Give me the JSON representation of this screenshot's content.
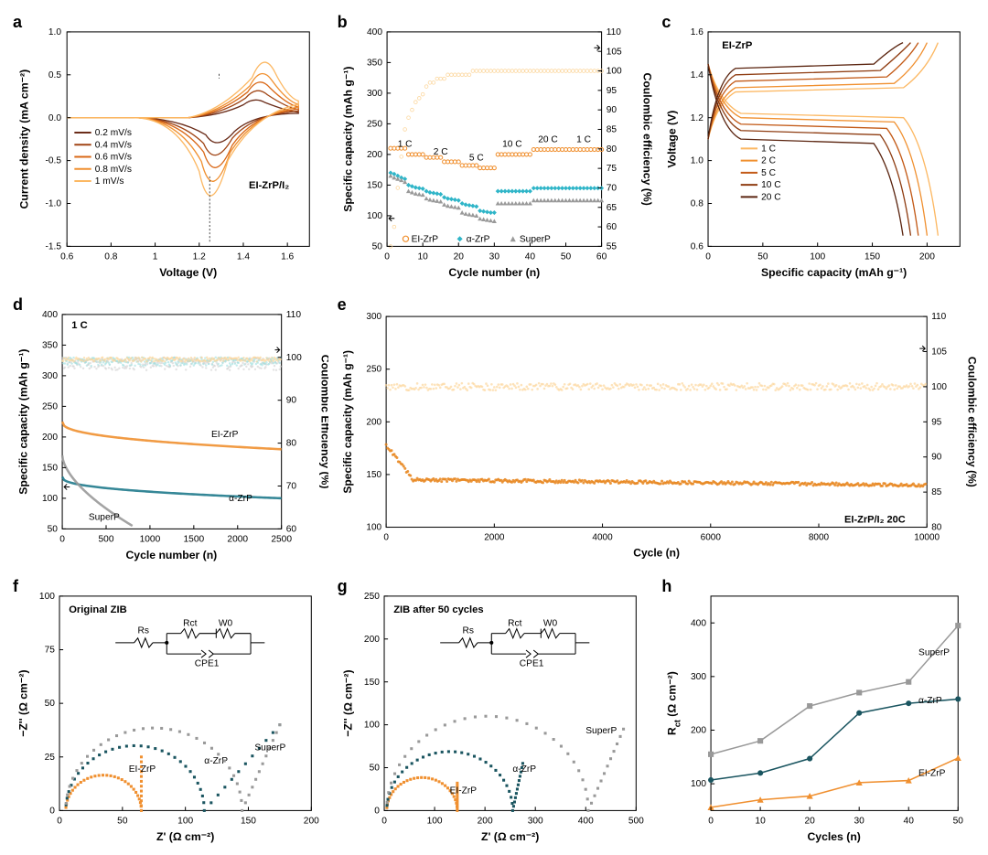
{
  "panels": {
    "a": {
      "label": "a",
      "title": "EI-ZrP/I₂",
      "xlabel": "Voltage (V)",
      "ylabel": "Current density (mA cm⁻²)",
      "xlim": [
        0.6,
        1.7
      ],
      "ylim": [
        -1.5,
        1.0
      ],
      "xticks": [
        0.6,
        0.8,
        1.0,
        1.2,
        1.4,
        1.6
      ],
      "yticks": [
        -1.5,
        -1.0,
        -0.5,
        0,
        0.5,
        1.0
      ],
      "background_color": "#ffffff",
      "legend": [
        "0.2 mV/s",
        "0.4 mV/s",
        "0.6 mV/s",
        "0.8 mV/s",
        "1 mV/s"
      ],
      "colors": [
        "#6b2d1a",
        "#a04515",
        "#d96817",
        "#f09030",
        "#fcb863"
      ],
      "cv_curves": [
        {
          "color": "#6b2d1a",
          "peaks": {
            "anodic": [
              1.45,
              0.25
            ],
            "cathodic": [
              1.28,
              -0.4
            ]
          }
        },
        {
          "color": "#a04515",
          "peaks": {
            "anodic": [
              1.46,
              0.38
            ],
            "cathodic": [
              1.27,
              -0.6
            ]
          }
        },
        {
          "color": "#d96817",
          "peaks": {
            "anodic": [
              1.47,
              0.5
            ],
            "cathodic": [
              1.27,
              -0.8
            ]
          }
        },
        {
          "color": "#f09030",
          "peaks": {
            "anodic": [
              1.48,
              0.62
            ],
            "cathodic": [
              1.26,
              -1.02
            ]
          }
        },
        {
          "color": "#fcb863",
          "peaks": {
            "anodic": [
              1.49,
              0.78
            ],
            "cathodic": [
              1.25,
              -1.25
            ]
          }
        }
      ]
    },
    "b": {
      "label": "b",
      "xlabel": "Cycle number (n)",
      "ylabel": "Specific capacity (mAh g⁻¹)",
      "ylabel2": "Coulombic efficiency (%)",
      "xlim": [
        0,
        60
      ],
      "ylim": [
        50,
        400
      ],
      "ylim2": [
        55,
        110
      ],
      "xticks": [
        0,
        10,
        20,
        30,
        40,
        50,
        60
      ],
      "yticks": [
        50,
        100,
        150,
        200,
        250,
        300,
        350,
        400
      ],
      "yticks2": [
        55,
        60,
        65,
        70,
        75,
        80,
        85,
        90,
        95,
        100,
        105,
        110
      ],
      "rate_labels": [
        "1 C",
        "2 C",
        "5 C",
        "10 C",
        "20 C",
        "1 C"
      ],
      "rate_x": [
        5,
        15,
        25,
        35,
        45,
        55
      ],
      "series": {
        "EI-ZrP": {
          "color": "#f09030",
          "marker": "circle",
          "values": [
            210,
            210,
            210,
            210,
            210,
            200,
            200,
            200,
            200,
            200,
            195,
            195,
            195,
            195,
            195,
            188,
            188,
            188,
            188,
            188,
            182,
            182,
            182,
            182,
            182,
            178,
            178,
            178,
            178,
            178,
            200,
            200,
            200,
            200,
            200,
            200,
            200,
            200,
            200,
            200,
            208,
            208,
            208,
            208,
            208,
            208,
            208,
            208,
            208,
            208,
            208,
            208,
            208,
            208,
            208,
            208,
            208,
            208,
            208,
            208
          ]
        },
        "α-ZrP": {
          "color": "#2fb5c8",
          "marker": "diamond",
          "values": [
            170,
            168,
            165,
            162,
            160,
            150,
            148,
            146,
            145,
            144,
            140,
            138,
            137,
            136,
            135,
            130,
            128,
            127,
            126,
            125,
            120,
            118,
            117,
            116,
            115,
            108,
            107,
            106,
            105,
            105,
            140,
            140,
            140,
            140,
            140,
            140,
            140,
            140,
            140,
            140,
            145,
            145,
            145,
            145,
            145,
            145,
            145,
            145,
            145,
            145,
            145,
            145,
            145,
            145,
            145,
            145,
            145,
            145,
            145,
            145
          ]
        },
        "SuperP": {
          "color": "#999999",
          "marker": "triangle",
          "values": [
            165,
            162,
            160,
            158,
            155,
            140,
            138,
            136,
            135,
            134,
            128,
            126,
            125,
            124,
            123,
            118,
            116,
            115,
            114,
            113,
            105,
            103,
            102,
            101,
            100,
            95,
            94,
            93,
            92,
            91,
            120,
            120,
            120,
            120,
            120,
            120,
            120,
            120,
            120,
            120,
            125,
            125,
            125,
            125,
            125,
            125,
            125,
            125,
            125,
            125,
            125,
            125,
            125,
            125,
            125,
            125,
            125,
            125,
            125,
            125
          ]
        }
      },
      "ce": {
        "color": "#fcd79e",
        "values": [
          55,
          60,
          70,
          78,
          85,
          88,
          90,
          92,
          93,
          94,
          96,
          97,
          97,
          98,
          98,
          98,
          99,
          99,
          99,
          99,
          99,
          99,
          99,
          100,
          100,
          100,
          100,
          100,
          100,
          100,
          100,
          100,
          100,
          100,
          100,
          100,
          100,
          100,
          100,
          100,
          100,
          100,
          100,
          100,
          100,
          100,
          100,
          100,
          100,
          100,
          100,
          100,
          100,
          100,
          100,
          100,
          100,
          100,
          100,
          100
        ]
      }
    },
    "c": {
      "label": "c",
      "title": "EI-ZrP",
      "xlabel": "Specific capacity (mAh g⁻¹)",
      "ylabel": "Voltage (V)",
      "xlim": [
        0,
        230
      ],
      "ylim": [
        0.6,
        1.6
      ],
      "xticks": [
        0,
        50,
        100,
        150,
        200
      ],
      "yticks": [
        0.6,
        0.8,
        1.0,
        1.2,
        1.4,
        1.6
      ],
      "legend": [
        "1 C",
        "2 C",
        "5 C",
        "10 C",
        "20 C"
      ],
      "colors": [
        "#fcb863",
        "#f09030",
        "#c35a17",
        "#8f3d12",
        "#5b2510"
      ],
      "curves": [
        {
          "color": "#fcb863",
          "charge_plateau": 1.32,
          "discharge_plateau": 1.22,
          "capacity": 210
        },
        {
          "color": "#f09030",
          "charge_plateau": 1.34,
          "discharge_plateau": 1.2,
          "capacity": 200
        },
        {
          "color": "#c35a17",
          "charge_plateau": 1.37,
          "discharge_plateau": 1.17,
          "capacity": 192
        },
        {
          "color": "#8f3d12",
          "charge_plateau": 1.4,
          "discharge_plateau": 1.14,
          "capacity": 185
        },
        {
          "color": "#5b2510",
          "charge_plateau": 1.43,
          "discharge_plateau": 1.1,
          "capacity": 178
        }
      ]
    },
    "d": {
      "label": "d",
      "title": "1 C",
      "xlabel": "Cycle number (n)",
      "ylabel": "Specific capacity (mAh g⁻¹)",
      "ylabel2": "Coulombic Efficiency (%)",
      "xlim": [
        0,
        2500
      ],
      "ylim": [
        50,
        400
      ],
      "ylim2": [
        60,
        110
      ],
      "xticks": [
        0,
        500,
        1000,
        1500,
        2000,
        2500
      ],
      "yticks": [
        50,
        100,
        150,
        200,
        250,
        300,
        350,
        400
      ],
      "yticks2": [
        60,
        70,
        80,
        90,
        100,
        110
      ],
      "series": {
        "EI-ZrP": {
          "color": "#f09030",
          "start": 225,
          "end": 180,
          "label_pos": [
            1700,
            200
          ]
        },
        "α-ZrP": {
          "color": "#1f7a8c",
          "start": 135,
          "end": 100,
          "label_pos": [
            1900,
            95
          ]
        },
        "SuperP": {
          "color": "#999999",
          "start": 170,
          "end": 55,
          "end_cycle": 800,
          "label_pos": [
            300,
            65
          ]
        }
      },
      "ce": {
        "colors": [
          "#cccccc",
          "#8fd9d9",
          "#fcd79e"
        ],
        "value": 99
      }
    },
    "e": {
      "label": "e",
      "title": "EI-ZrP/I₂ 20C",
      "xlabel": "Cycle (n)",
      "ylabel": "Specific capacity (mAh g⁻¹)",
      "ylabel2": "Coulombic efficiency (%)",
      "xlim": [
        0,
        10000
      ],
      "ylim": [
        100,
        300
      ],
      "ylim2": [
        80,
        110
      ],
      "xticks": [
        0,
        2000,
        4000,
        6000,
        8000,
        10000
      ],
      "yticks": [
        100,
        150,
        200,
        250,
        300
      ],
      "yticks2": [
        80,
        85,
        90,
        95,
        100,
        105,
        110
      ],
      "capacity": {
        "color": "#e8851c",
        "start": 178,
        "plateau": 145,
        "end": 140
      },
      "ce": {
        "color": "#fcd79e",
        "value": 100
      }
    },
    "f": {
      "label": "f",
      "title": "Original ZIB",
      "xlabel": "Z' (Ω cm⁻²)",
      "ylabel": "−Z'' (Ω cm⁻²)",
      "xlim": [
        0,
        200
      ],
      "ylim": [
        0,
        100
      ],
      "xticks": [
        0,
        50,
        100,
        150,
        200
      ],
      "yticks": [
        0,
        25,
        50,
        75,
        100
      ],
      "circuit": {
        "elements": [
          "Rs",
          "Rct",
          "W0",
          "CPE1"
        ]
      },
      "series": {
        "EI-ZrP": {
          "color": "#f09030",
          "semicircle_r": 30,
          "tail_end": [
            65,
            25
          ],
          "label_pos": [
            55,
            18
          ]
        },
        "α-ZrP": {
          "color": "#1a5560",
          "semicircle_r": 55,
          "tail_end": [
            175,
            40
          ],
          "label_pos": [
            115,
            22
          ]
        },
        "SuperP": {
          "color": "#999999",
          "semicircle_r": 70,
          "tail_end": [
            175,
            40
          ],
          "label_pos": [
            155,
            28
          ]
        }
      }
    },
    "g": {
      "label": "g",
      "title": "ZIB after 50 cycles",
      "xlabel": "Z' (Ω cm⁻²)",
      "ylabel": "−Z'' (Ω cm⁻²)",
      "xlim": [
        0,
        500
      ],
      "ylim": [
        0,
        250
      ],
      "xticks": [
        0,
        100,
        200,
        300,
        400,
        500
      ],
      "yticks": [
        0,
        50,
        100,
        150,
        200,
        250
      ],
      "circuit": {
        "elements": [
          "Rs",
          "Rct",
          "W0",
          "CPE1"
        ]
      },
      "series": {
        "EI-ZrP": {
          "color": "#f09030",
          "semicircle_r": 70,
          "tail_end": [
            145,
            32
          ],
          "label_pos": [
            130,
            20
          ]
        },
        "α-ZrP": {
          "color": "#1a5560",
          "semicircle_r": 125,
          "tail_end": [
            275,
            55
          ],
          "label_pos": [
            255,
            45
          ]
        },
        "SuperP": {
          "color": "#999999",
          "semicircle_r": 200,
          "tail_end": [
            475,
            95
          ],
          "label_pos": [
            400,
            90
          ]
        }
      }
    },
    "h": {
      "label": "h",
      "xlabel": "Cycles (n)",
      "ylabel": "R_ct (Ω cm⁻²)",
      "xlim": [
        0,
        50
      ],
      "ylim": [
        50,
        450
      ],
      "xticks": [
        0,
        10,
        20,
        30,
        40,
        50
      ],
      "yticks": [
        100,
        200,
        300,
        400
      ],
      "series": {
        "SuperP": {
          "color": "#999999",
          "marker": "square",
          "values": [
            [
              0,
              155
            ],
            [
              10,
              180
            ],
            [
              20,
              245
            ],
            [
              30,
              270
            ],
            [
              40,
              290
            ],
            [
              50,
              395
            ]
          ],
          "label_pos": [
            42,
            340
          ]
        },
        "α-ZrP": {
          "color": "#1a5560",
          "marker": "circle",
          "values": [
            [
              0,
              107
            ],
            [
              10,
              120
            ],
            [
              20,
              147
            ],
            [
              30,
              232
            ],
            [
              40,
              250
            ],
            [
              50,
              258
            ]
          ],
          "label_pos": [
            42,
            250
          ]
        },
        "EI-ZrP": {
          "color": "#f09030",
          "marker": "triangle",
          "values": [
            [
              0,
              56
            ],
            [
              10,
              70
            ],
            [
              20,
              77
            ],
            [
              30,
              102
            ],
            [
              40,
              106
            ],
            [
              50,
              148
            ]
          ],
          "label_pos": [
            42,
            115
          ]
        }
      }
    }
  }
}
